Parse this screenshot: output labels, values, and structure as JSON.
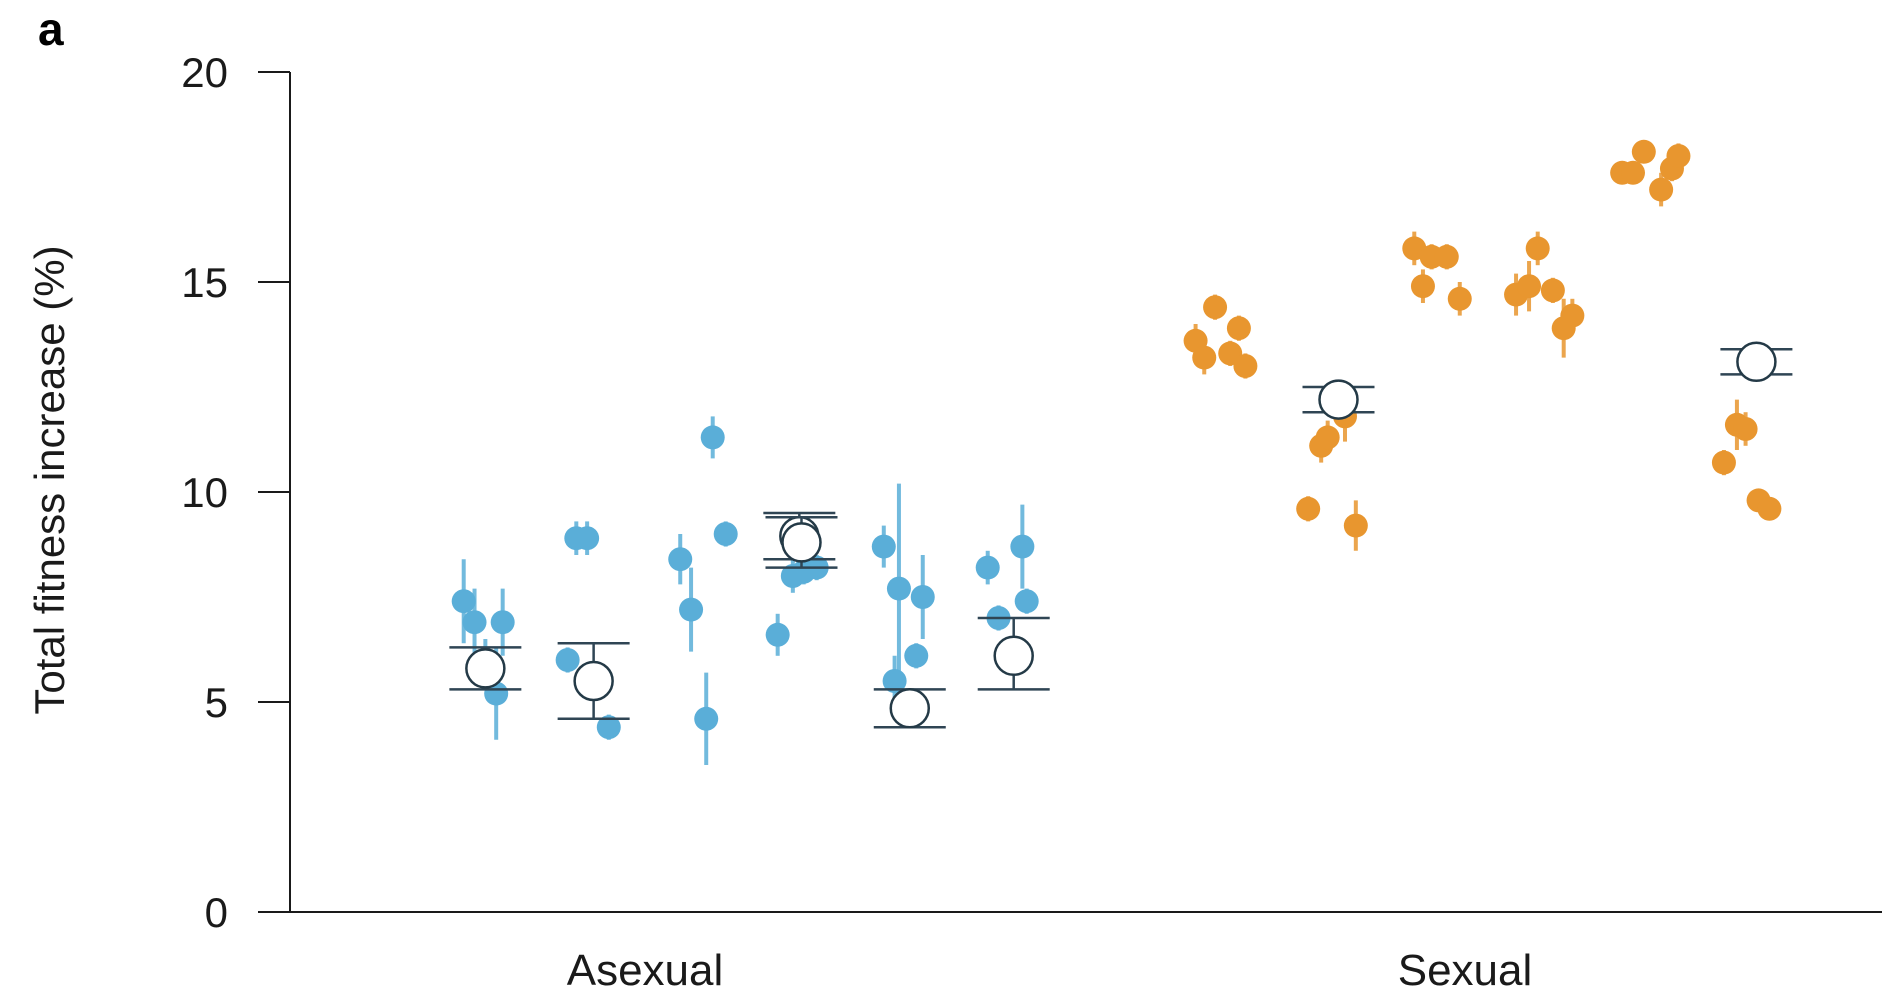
{
  "chart_data": {
    "type": "scatter",
    "panel_label": "a",
    "ylabel": "Total fitness increase (%)",
    "xlabel": "",
    "ylim": [
      0,
      20
    ],
    "yticks": [
      0,
      5,
      10,
      15,
      20
    ],
    "categories": [
      "Asexual",
      "Sexual"
    ],
    "grid": false,
    "legend": "none",
    "colors": {
      "Asexual": "#5aaed8",
      "Sexual": "#e8962f",
      "mean_marker_stroke": "#243a47",
      "errorbar": "#2f4554",
      "axis": "#1a1a1a"
    },
    "groups": [
      {
        "category": "Asexual",
        "x": 1.55,
        "points": [
          [
            1.45,
            7.4,
            1.0
          ],
          [
            1.5,
            6.9,
            0.8
          ],
          [
            1.55,
            5.9,
            0.6
          ],
          [
            1.6,
            5.2,
            1.1
          ],
          [
            1.63,
            6.9,
            0.8
          ]
        ],
        "mean": 5.8,
        "err_low": 5.3,
        "err_high": 6.3
      },
      {
        "category": "Asexual",
        "x": 2.05,
        "points": [
          [
            1.93,
            6.0,
            0.3
          ],
          [
            1.97,
            8.9,
            0.4
          ],
          [
            2.02,
            8.9,
            0.4
          ],
          [
            2.12,
            4.4,
            0.3
          ]
        ],
        "mean": 5.5,
        "err_low": 4.6,
        "err_high": 6.4
      },
      {
        "category": "Asexual",
        "x": 3.0,
        "points": [
          [
            2.45,
            8.4,
            0.6
          ],
          [
            2.5,
            7.2,
            1.0
          ],
          [
            2.57,
            4.6,
            1.1
          ],
          [
            2.6,
            11.3,
            0.5
          ],
          [
            2.66,
            9.0,
            0.3
          ]
        ],
        "mean": 8.95,
        "err_low": 8.4,
        "err_high": 9.5
      },
      {
        "category": "Asexual",
        "x": 3.01,
        "points": [
          [
            2.9,
            6.6,
            0.5
          ],
          [
            2.97,
            8.0,
            0.4
          ],
          [
            3.02,
            8.1,
            0.3
          ],
          [
            3.08,
            8.2,
            0.3
          ]
        ],
        "mean": 8.8,
        "err_low": 8.2,
        "err_high": 9.4
      },
      {
        "category": "Asexual",
        "x": 3.51,
        "points": [
          [
            3.39,
            8.7,
            0.5
          ],
          [
            3.44,
            5.5,
            0.6
          ],
          [
            3.46,
            7.7,
            2.5
          ],
          [
            3.54,
            6.1,
            0.3
          ],
          [
            3.57,
            7.5,
            1.0
          ]
        ],
        "mean": 4.85,
        "err_low": 4.4,
        "err_high": 5.3
      },
      {
        "category": "Asexual",
        "x": 3.99,
        "points": [
          [
            3.87,
            8.2,
            0.4
          ],
          [
            3.92,
            7.0,
            0.3
          ],
          [
            4.03,
            8.7,
            1.0
          ],
          [
            4.05,
            7.4,
            0.3
          ]
        ],
        "mean": 6.1,
        "err_low": 5.3,
        "err_high": 7.0
      },
      {
        "category": "Sexual",
        "x": 5.0,
        "points": [
          [
            4.83,
            13.6,
            0.4
          ],
          [
            4.87,
            13.2,
            0.4
          ],
          [
            4.92,
            14.4,
            0.3
          ],
          [
            4.99,
            13.3,
            0.3
          ],
          [
            5.03,
            13.9,
            0.3
          ],
          [
            5.06,
            13.0,
            0.3
          ]
        ],
        "mean": null,
        "err_low": null,
        "err_high": null
      },
      {
        "category": "Sexual",
        "x": 5.49,
        "points": [
          [
            5.35,
            9.6,
            0.3
          ],
          [
            5.41,
            11.1,
            0.4
          ],
          [
            5.44,
            11.3,
            0.4
          ],
          [
            5.52,
            11.8,
            0.6
          ],
          [
            5.57,
            9.2,
            0.6
          ]
        ],
        "mean": 12.2,
        "err_low": 11.9,
        "err_high": 12.5
      },
      {
        "category": "Sexual",
        "x": 5.97,
        "points": [
          [
            5.84,
            15.8,
            0.4
          ],
          [
            5.88,
            14.9,
            0.4
          ],
          [
            5.92,
            15.6,
            0.3
          ],
          [
            5.99,
            15.6,
            0.3
          ],
          [
            6.05,
            14.6,
            0.4
          ]
        ],
        "mean": null,
        "err_low": null,
        "err_high": null
      },
      {
        "category": "Sexual",
        "x": 6.45,
        "points": [
          [
            6.31,
            14.7,
            0.5
          ],
          [
            6.37,
            14.9,
            0.6
          ],
          [
            6.41,
            15.8,
            0.4
          ],
          [
            6.48,
            14.8,
            0.3
          ],
          [
            6.53,
            13.9,
            0.7
          ],
          [
            6.57,
            14.2,
            0.4
          ]
        ],
        "mean": null,
        "err_low": null,
        "err_high": null
      },
      {
        "category": "Sexual",
        "x": 6.94,
        "points": [
          [
            6.8,
            17.6,
            0.2
          ],
          [
            6.85,
            17.6,
            0.2
          ],
          [
            6.9,
            18.1,
            0.2
          ],
          [
            6.98,
            17.2,
            0.4
          ],
          [
            7.03,
            17.7,
            0.3
          ],
          [
            7.06,
            18.0,
            0.3
          ]
        ],
        "mean": null,
        "err_low": null,
        "err_high": null
      },
      {
        "category": "Sexual",
        "x": 7.42,
        "points": [
          [
            7.27,
            10.7,
            0.3
          ],
          [
            7.33,
            11.6,
            0.6
          ],
          [
            7.37,
            11.5,
            0.4
          ],
          [
            7.43,
            9.8,
            0.2
          ],
          [
            7.48,
            9.6,
            0.2
          ]
        ],
        "mean": 13.1,
        "err_low": 12.8,
        "err_high": 13.4
      }
    ]
  }
}
